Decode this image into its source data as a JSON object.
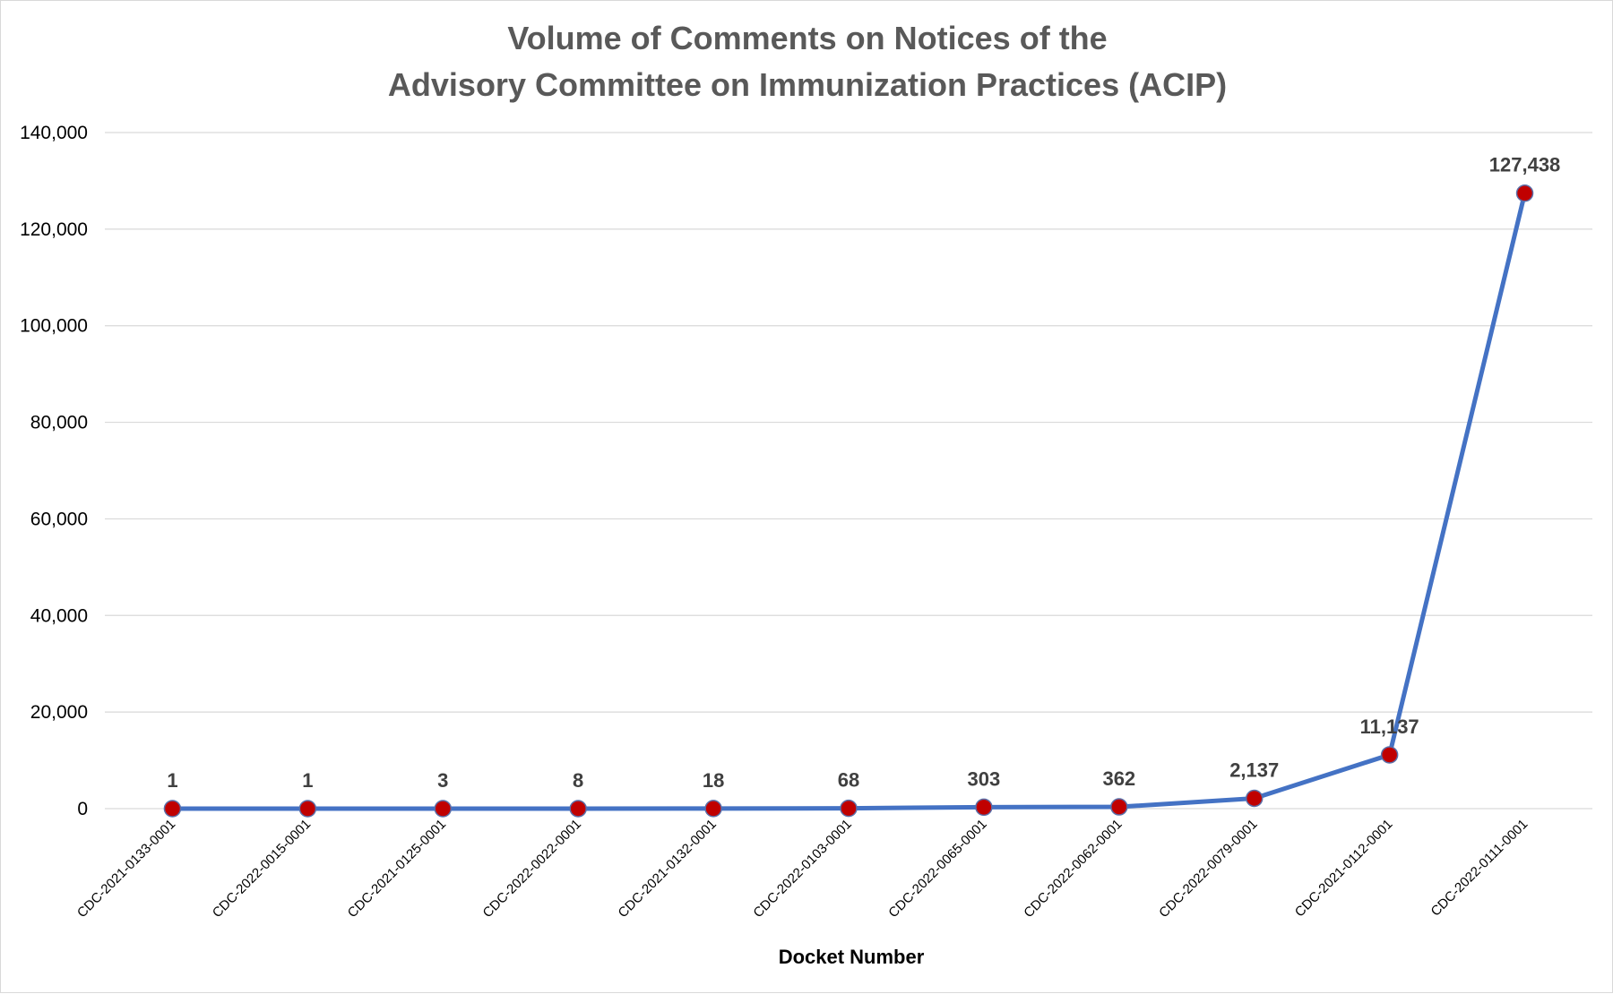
{
  "chart_data": {
    "type": "line",
    "title": [
      "Volume of Comments on Notices of the",
      "Advisory Committee on Immunization Practices (ACIP)"
    ],
    "xlabel": "Docket Number",
    "ylabel": "",
    "ylim": [
      0,
      140000
    ],
    "yticks": [
      0,
      20000,
      40000,
      60000,
      80000,
      100000,
      120000,
      140000
    ],
    "ytick_labels": [
      "0",
      "20,000",
      "40,000",
      "60,000",
      "80,000",
      "100,000",
      "120,000",
      "140,000"
    ],
    "grid": true,
    "legend": "none",
    "categories": [
      "CDC-2021-0133-0001",
      "CDC-2022-0015-0001",
      "CDC-2021-0125-0001",
      "CDC-2022-0022-0001",
      "CDC-2021-0132-0001",
      "CDC-2022-0103-0001",
      "CDC-2022-0065-0001",
      "CDC-2022-0062-0001",
      "CDC-2022-0079-0001",
      "CDC-2021-0112-0001",
      "CDC-2022-0111-0001"
    ],
    "series": [
      {
        "values": [
          1,
          1,
          3,
          8,
          18,
          68,
          303,
          362,
          2137,
          11137,
          127438
        ],
        "labels": [
          "1",
          "1",
          "3",
          "8",
          "18",
          "68",
          "303",
          "362",
          "2,137",
          "11,137",
          "127,438"
        ],
        "line_color": "#4472c4",
        "marker_color": "#c00000"
      }
    ]
  }
}
